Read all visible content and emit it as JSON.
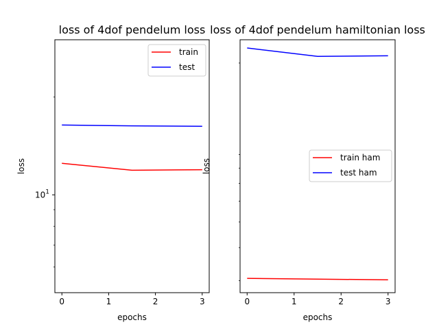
{
  "chart_data": [
    {
      "type": "line",
      "title": "loss of 4dof pendelum loss",
      "xlabel": "epochs",
      "ylabel": "loss",
      "yscale": "log",
      "xlim": [
        -0.15,
        3.15
      ],
      "ylim": [
        5.0,
        30.0
      ],
      "xticks": [
        "0",
        "1",
        "2",
        "3"
      ],
      "yticks": [
        {
          "value": 10,
          "label": "10^1"
        }
      ],
      "legend": "top-right",
      "grid": false,
      "series": [
        {
          "name": "train",
          "color": "#ff0000",
          "x": [
            0,
            1.5,
            3
          ],
          "y": [
            12.5,
            11.9,
            11.95
          ]
        },
        {
          "name": "test",
          "color": "#0000ff",
          "x": [
            0,
            1.5,
            3
          ],
          "y": [
            16.4,
            16.3,
            16.25
          ]
        }
      ]
    },
    {
      "type": "line",
      "title": "loss of 4dof pendelum hamiltonian loss",
      "xlabel": "epochs",
      "ylabel": "loss",
      "yscale": "log",
      "xlim": [
        -0.15,
        3.15
      ],
      "ylim": [
        0.27,
        2.45
      ],
      "xticks": [
        "0",
        "1",
        "2",
        "3"
      ],
      "yticks": [],
      "legend": "center-right",
      "grid": false,
      "series": [
        {
          "name": "train ham",
          "color": "#ff0000",
          "x": [
            0,
            1.5,
            3
          ],
          "y": [
            0.306,
            0.304,
            0.302
          ]
        },
        {
          "name": "test ham",
          "color": "#0000ff",
          "x": [
            0,
            1.5,
            3
          ],
          "y": [
            2.28,
            2.12,
            2.13
          ]
        }
      ]
    }
  ]
}
